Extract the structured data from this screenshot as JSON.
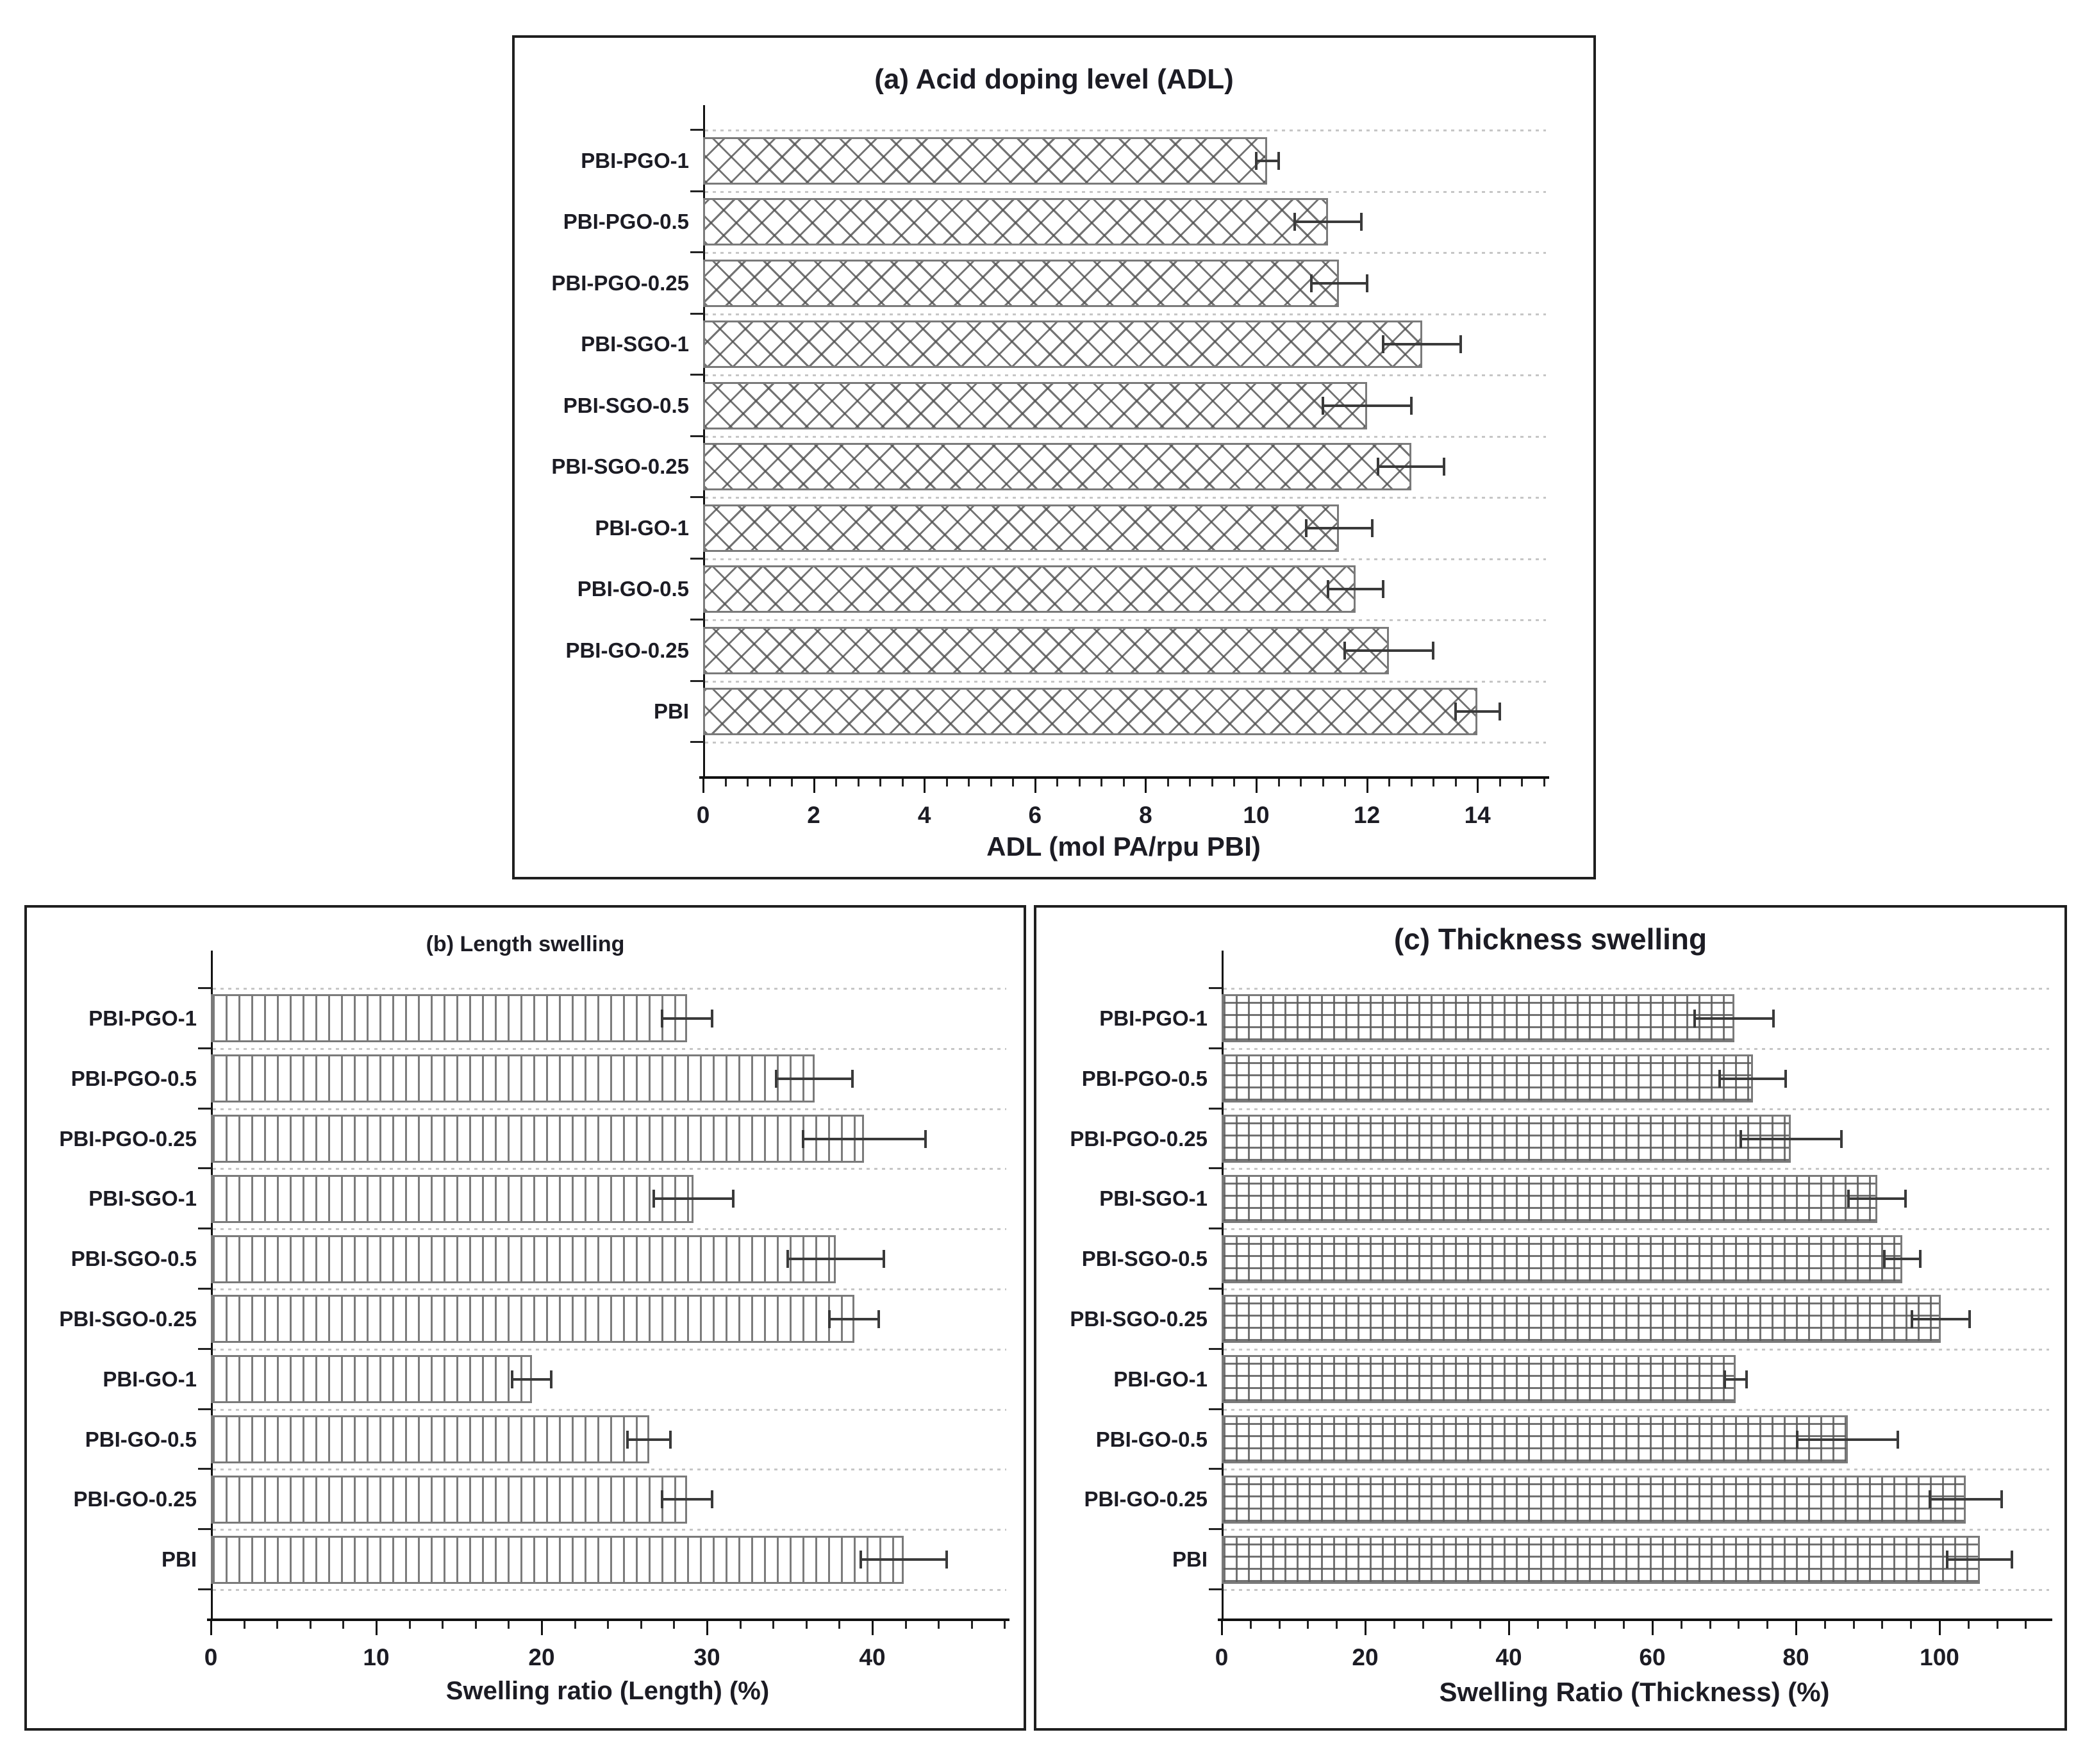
{
  "figure": {
    "background": "#ffffff",
    "description": "Three horizontal bar charts comparing PBI composite membranes"
  },
  "colors": {
    "text": "#1c1c24",
    "axis": "#111111",
    "bar_border": "#7a7a7a",
    "hatch_line": "#5a5a5a",
    "error_bar": "#3a3a3a",
    "gridline": "#c6c6c6",
    "panel_border": "#1f1f1f",
    "background": "#ffffff"
  },
  "chart_data": [
    {
      "panel": "a",
      "type": "bar",
      "orientation": "horizontal",
      "title": "(a) Acid doping level (ADL)",
      "xlabel": "ADL (mol PA/rpu PBI)",
      "categories": [
        "PBI-PGO-1",
        "PBI-PGO-0.5",
        "PBI-PGO-0.25",
        "PBI-SGO-1",
        "PBI-SGO-0.5",
        "PBI-SGO-0.25",
        "PBI-GO-1",
        "PBI-GO-0.5",
        "PBI-GO-0.25",
        "PBI"
      ],
      "values": [
        10.2,
        11.3,
        11.5,
        13.0,
        12.0,
        12.8,
        11.5,
        11.8,
        12.4,
        14.0
      ],
      "errors": [
        0.2,
        0.6,
        0.5,
        0.7,
        0.8,
        0.6,
        0.6,
        0.5,
        0.8,
        0.4
      ],
      "xlim": [
        0,
        15.2
      ],
      "xticks": [
        0,
        2,
        4,
        6,
        8,
        10,
        12,
        14
      ],
      "minor_tick_step": 0.4,
      "hatch": "diagonal-crosshatch",
      "grid": "dotted horizontal lines at category boundaries",
      "legend": "none"
    },
    {
      "panel": "b",
      "type": "bar",
      "orientation": "horizontal",
      "title": "(b) Length swelling",
      "xlabel": "Swelling ratio (Length) (%)",
      "categories": [
        "PBI-PGO-1",
        "PBI-PGO-0.5",
        "PBI-PGO-0.25",
        "PBI-SGO-1",
        "PBI-SGO-0.5",
        "PBI-SGO-0.25",
        "PBI-GO-1",
        "PBI-GO-0.5",
        "PBI-GO-0.25",
        "PBI"
      ],
      "values": [
        28.8,
        36.5,
        39.5,
        29.2,
        37.8,
        38.9,
        19.4,
        26.5,
        28.8,
        41.9
      ],
      "errors": [
        1.5,
        2.3,
        3.7,
        2.4,
        2.9,
        1.5,
        1.2,
        1.3,
        1.5,
        2.6
      ],
      "xlim": [
        0,
        48
      ],
      "xticks": [
        0,
        10,
        20,
        30,
        40
      ],
      "minor_tick_step": 2,
      "hatch": "vertical-lines",
      "grid": "dotted horizontal lines at category boundaries",
      "legend": "none"
    },
    {
      "panel": "c",
      "type": "bar",
      "orientation": "horizontal",
      "title": "(c) Thickness swelling",
      "xlabel": "Swelling Ratio (Thickness) (%)",
      "categories": [
        "PBI-PGO-1",
        "PBI-PGO-0.5",
        "PBI-PGO-0.25",
        "PBI-SGO-1",
        "PBI-SGO-0.5",
        "PBI-SGO-0.25",
        "PBI-GO-1",
        "PBI-GO-0.5",
        "PBI-GO-0.25",
        "PBI"
      ],
      "values": [
        71.4,
        74.0,
        79.3,
        91.3,
        94.8,
        100.2,
        71.6,
        87.2,
        103.7,
        105.6
      ],
      "errors": [
        5.5,
        4.6,
        7.0,
        4.0,
        2.5,
        4.0,
        1.5,
        7.0,
        5.0,
        4.5
      ],
      "xlim": [
        0,
        115
      ],
      "xticks": [
        0,
        20,
        40,
        60,
        80,
        100
      ],
      "minor_tick_step": 4,
      "hatch": "grid-crosshatch",
      "grid": "dotted horizontal lines at category boundaries",
      "legend": "none"
    }
  ]
}
